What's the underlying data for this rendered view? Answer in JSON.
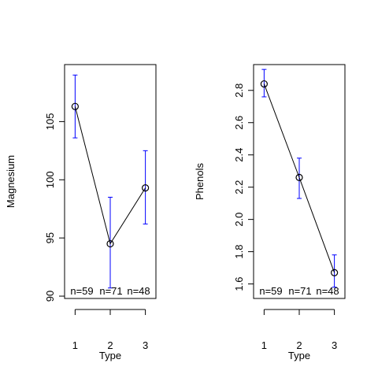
{
  "chart_data": [
    {
      "type": "line",
      "title": "",
      "xlabel": "Type",
      "ylabel": "Magnesium",
      "categories": [
        "1",
        "2",
        "3"
      ],
      "xlim": [
        0.7,
        3.3
      ],
      "ylim": [
        89.8,
        109.9
      ],
      "yticks": [
        90,
        95,
        100,
        105
      ],
      "means": [
        106.3,
        94.5,
        99.3
      ],
      "ci_lower": [
        103.6,
        90.7,
        96.2
      ],
      "ci_upper": [
        109.0,
        98.5,
        102.5
      ],
      "n_labels": [
        "n=59",
        "n=71",
        "n=48"
      ],
      "errorbar_color": "#0000ff"
    },
    {
      "type": "line",
      "title": "",
      "xlabel": "Type",
      "ylabel": "Phenols",
      "categories": [
        "1",
        "2",
        "3"
      ],
      "xlim": [
        0.7,
        3.3
      ],
      "ylim": [
        1.51,
        2.96
      ],
      "yticks": [
        1.6,
        1.8,
        2.0,
        2.2,
        2.4,
        2.6,
        2.8
      ],
      "means": [
        2.84,
        2.26,
        1.67
      ],
      "ci_lower": [
        2.76,
        2.13,
        1.58
      ],
      "ci_upper": [
        2.93,
        2.38,
        1.78
      ],
      "n_labels": [
        "n=59",
        "n=71",
        "n=48"
      ],
      "errorbar_color": "#0000ff"
    }
  ]
}
